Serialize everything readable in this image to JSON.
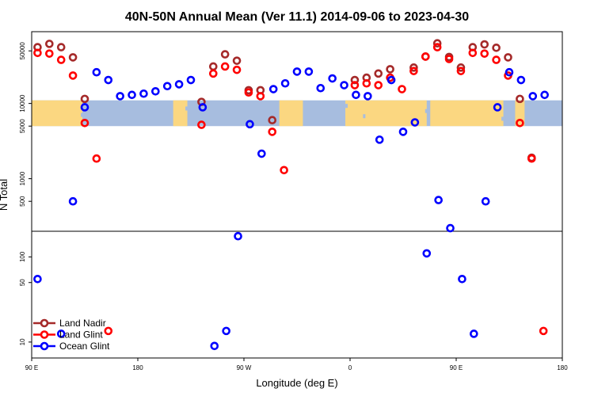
{
  "chart_data": {
    "type": "scatter",
    "title": "40N-50N Annual Mean (Ver 11.1)   2014-09-06 to 2023-04-30",
    "xlabel": "Longitude (deg E)",
    "ylabel": "N Total",
    "x_ticks": [
      {
        "value": 90,
        "label": "90 E"
      },
      {
        "value": 180,
        "label": "180"
      },
      {
        "value": 270,
        "label": "90 W"
      },
      {
        "value": 360,
        "label": "0"
      },
      {
        "value": 450,
        "label": "90 E"
      },
      {
        "value": 540,
        "label": "180"
      }
    ],
    "xlim": [
      90,
      540
    ],
    "y_scale": "log",
    "upper_panel": {
      "ylim": [
        200,
        90000
      ],
      "y_ticks": [
        {
          "value": 500,
          "label": "500"
        },
        {
          "value": 1000,
          "label": "1000"
        },
        {
          "value": 5000,
          "label": "5000"
        },
        {
          "value": 10000,
          "label": "10000"
        },
        {
          "value": 50000,
          "label": "50000"
        }
      ]
    },
    "lower_panel": {
      "ylim": [
        6.5,
        200
      ],
      "y_ticks": [
        {
          "value": 10,
          "label": "10"
        },
        {
          "value": 50,
          "label": "50"
        },
        {
          "value": 100,
          "label": "100"
        }
      ]
    },
    "map_strip": {
      "y_from": 5000,
      "y_to": 11000,
      "land_color": "#fbd781",
      "ocean_color": "#a7bddf"
    },
    "legend": {
      "placement": "bottom-left"
    },
    "series": [
      {
        "name": "Land Nadir",
        "color": "#a52a2a",
        "points": [
          [
            95,
            56000
          ],
          [
            105,
            62000
          ],
          [
            115,
            56000
          ],
          [
            125,
            41000
          ],
          [
            135,
            11500
          ],
          [
            234,
            10500
          ],
          [
            244,
            31000
          ],
          [
            254,
            45000
          ],
          [
            264,
            37000
          ],
          [
            274,
            15000
          ],
          [
            284,
            15000
          ],
          [
            294,
            6000
          ],
          [
            364,
            20500
          ],
          [
            374,
            22000
          ],
          [
            384,
            25000
          ],
          [
            394,
            28500
          ],
          [
            414,
            30000
          ],
          [
            424,
            42000
          ],
          [
            434,
            63000
          ],
          [
            444,
            41500
          ],
          [
            454,
            30000
          ],
          [
            464,
            56000
          ],
          [
            474,
            61000
          ],
          [
            484,
            55000
          ],
          [
            494,
            41000
          ],
          [
            504,
            11500
          ],
          [
            514,
            1900
          ]
        ]
      },
      {
        "name": "Land Glint",
        "color": "#ff0000",
        "points": [
          [
            95,
            47000
          ],
          [
            105,
            46000
          ],
          [
            115,
            38000
          ],
          [
            125,
            23500
          ],
          [
            135,
            5500
          ],
          [
            145,
            1850
          ],
          [
            155,
            13.5
          ],
          [
            234,
            5200
          ],
          [
            244,
            25000
          ],
          [
            254,
            31000
          ],
          [
            264,
            28000
          ],
          [
            274,
            14000
          ],
          [
            284,
            12500
          ],
          [
            294,
            4200
          ],
          [
            304,
            1300
          ],
          [
            364,
            17500
          ],
          [
            374,
            18500
          ],
          [
            384,
            17500
          ],
          [
            394,
            22000
          ],
          [
            404,
            15500
          ],
          [
            414,
            27000
          ],
          [
            424,
            42000
          ],
          [
            434,
            56000
          ],
          [
            444,
            39000
          ],
          [
            454,
            27000
          ],
          [
            464,
            47000
          ],
          [
            474,
            46000
          ],
          [
            484,
            38000
          ],
          [
            494,
            23500
          ],
          [
            504,
            5500
          ],
          [
            514,
            1850
          ],
          [
            524,
            13.5
          ]
        ]
      },
      {
        "name": "Ocean Glint",
        "color": "#0000ff",
        "points": [
          [
            95,
            55
          ],
          [
            115,
            12.5
          ],
          [
            125,
            500
          ],
          [
            135,
            8900
          ],
          [
            145,
            26000
          ],
          [
            155,
            20500
          ],
          [
            165,
            12500
          ],
          [
            175,
            13000
          ],
          [
            185,
            13500
          ],
          [
            195,
            14500
          ],
          [
            205,
            17000
          ],
          [
            215,
            18000
          ],
          [
            225,
            20500
          ],
          [
            235,
            8900
          ],
          [
            245,
            9
          ],
          [
            255,
            13.5
          ],
          [
            265,
            175
          ],
          [
            275,
            5300
          ],
          [
            285,
            2150
          ],
          [
            295,
            15500
          ],
          [
            305,
            18500
          ],
          [
            315,
            26500
          ],
          [
            325,
            26500
          ],
          [
            335,
            16000
          ],
          [
            345,
            21500
          ],
          [
            355,
            17500
          ],
          [
            365,
            13000
          ],
          [
            375,
            12500
          ],
          [
            385,
            3300
          ],
          [
            395,
            20500
          ],
          [
            405,
            4200
          ],
          [
            415,
            5600
          ],
          [
            425,
            110
          ],
          [
            435,
            520
          ],
          [
            445,
            220
          ],
          [
            455,
            55
          ],
          [
            465,
            12.5
          ],
          [
            475,
            500
          ],
          [
            485,
            8900
          ],
          [
            495,
            26000
          ],
          [
            505,
            20500
          ],
          [
            515,
            12500
          ],
          [
            525,
            13000
          ]
        ]
      }
    ]
  }
}
